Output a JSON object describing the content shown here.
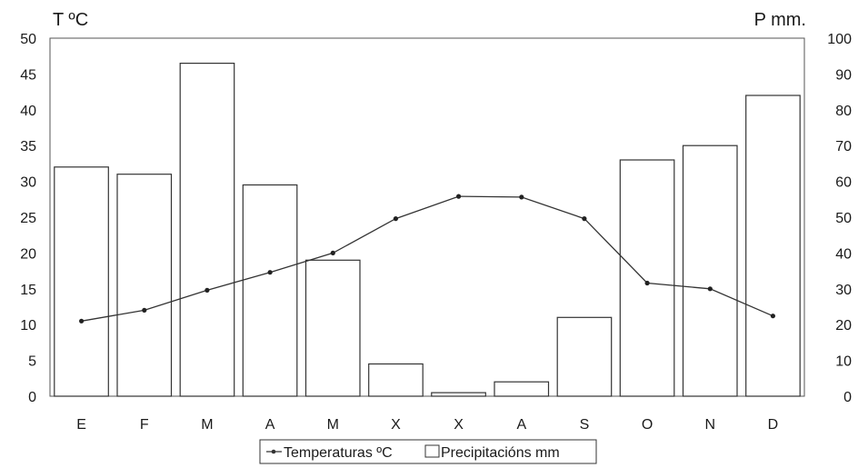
{
  "chart_data": {
    "type": "bar",
    "categories": [
      "E",
      "F",
      "M",
      "A",
      "M",
      "X",
      "X",
      "A",
      "S",
      "O",
      "N",
      "D"
    ],
    "y_left_label": "T ºC",
    "y_right_label": "P mm.",
    "y_left_range": [
      0,
      50
    ],
    "y_right_range": [
      0,
      100
    ],
    "y_left_ticks": [
      "0",
      "5",
      "10",
      "15",
      "20",
      "25",
      "30",
      "35",
      "40",
      "45",
      "50"
    ],
    "y_right_ticks": [
      "0",
      "10",
      "20",
      "30",
      "40",
      "50",
      "60",
      "70",
      "80",
      "90",
      "100"
    ],
    "grid": false,
    "legend_position": "bottom",
    "series": [
      {
        "name": "Temperaturas ºC",
        "type": "line",
        "axis": "left",
        "values": [
          10.5,
          12,
          14.8,
          17.3,
          20,
          24.8,
          27.9,
          27.8,
          24.8,
          15.8,
          15,
          11.2
        ]
      },
      {
        "name": "Precipitacións mm",
        "type": "bar",
        "axis": "right",
        "values": [
          64,
          62,
          93,
          59,
          38,
          9,
          1,
          4,
          22,
          66,
          70,
          84
        ]
      }
    ]
  }
}
